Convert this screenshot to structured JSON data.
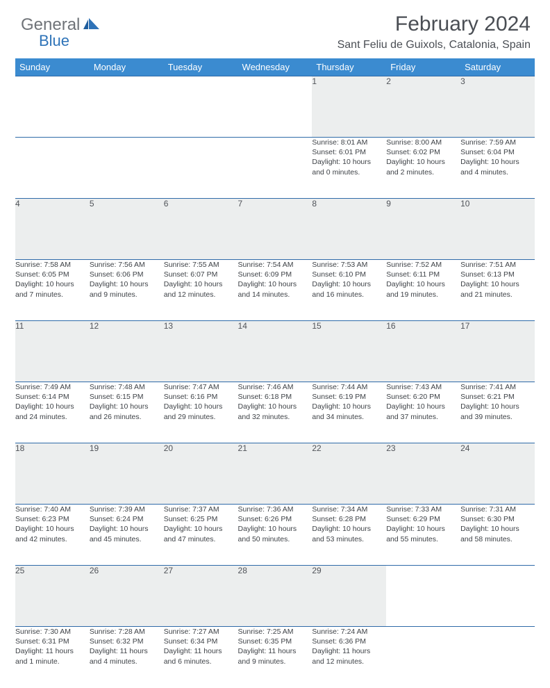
{
  "logo": {
    "word1": "General",
    "word2": "Blue"
  },
  "header": {
    "title": "February 2024",
    "location": "Sant Feliu de Guixols, Catalonia, Spain"
  },
  "colors": {
    "header_bg": "#3b8bd0",
    "header_text": "#ffffff",
    "daynum_bg": "#eceeee",
    "border": "#2e6aa8",
    "body_text": "#3e4247",
    "title_text": "#4a4e54",
    "logo_gray": "#6f7378",
    "logo_blue": "#2e73b8"
  },
  "weekdays": [
    "Sunday",
    "Monday",
    "Tuesday",
    "Wednesday",
    "Thursday",
    "Friday",
    "Saturday"
  ],
  "weeks": [
    [
      null,
      null,
      null,
      null,
      {
        "n": "1",
        "sunrise": "8:01 AM",
        "sunset": "6:01 PM",
        "day_h": "10",
        "day_m": "0"
      },
      {
        "n": "2",
        "sunrise": "8:00 AM",
        "sunset": "6:02 PM",
        "day_h": "10",
        "day_m": "2"
      },
      {
        "n": "3",
        "sunrise": "7:59 AM",
        "sunset": "6:04 PM",
        "day_h": "10",
        "day_m": "4"
      }
    ],
    [
      {
        "n": "4",
        "sunrise": "7:58 AM",
        "sunset": "6:05 PM",
        "day_h": "10",
        "day_m": "7"
      },
      {
        "n": "5",
        "sunrise": "7:56 AM",
        "sunset": "6:06 PM",
        "day_h": "10",
        "day_m": "9"
      },
      {
        "n": "6",
        "sunrise": "7:55 AM",
        "sunset": "6:07 PM",
        "day_h": "10",
        "day_m": "12"
      },
      {
        "n": "7",
        "sunrise": "7:54 AM",
        "sunset": "6:09 PM",
        "day_h": "10",
        "day_m": "14"
      },
      {
        "n": "8",
        "sunrise": "7:53 AM",
        "sunset": "6:10 PM",
        "day_h": "10",
        "day_m": "16"
      },
      {
        "n": "9",
        "sunrise": "7:52 AM",
        "sunset": "6:11 PM",
        "day_h": "10",
        "day_m": "19"
      },
      {
        "n": "10",
        "sunrise": "7:51 AM",
        "sunset": "6:13 PM",
        "day_h": "10",
        "day_m": "21"
      }
    ],
    [
      {
        "n": "11",
        "sunrise": "7:49 AM",
        "sunset": "6:14 PM",
        "day_h": "10",
        "day_m": "24"
      },
      {
        "n": "12",
        "sunrise": "7:48 AM",
        "sunset": "6:15 PM",
        "day_h": "10",
        "day_m": "26"
      },
      {
        "n": "13",
        "sunrise": "7:47 AM",
        "sunset": "6:16 PM",
        "day_h": "10",
        "day_m": "29"
      },
      {
        "n": "14",
        "sunrise": "7:46 AM",
        "sunset": "6:18 PM",
        "day_h": "10",
        "day_m": "32"
      },
      {
        "n": "15",
        "sunrise": "7:44 AM",
        "sunset": "6:19 PM",
        "day_h": "10",
        "day_m": "34"
      },
      {
        "n": "16",
        "sunrise": "7:43 AM",
        "sunset": "6:20 PM",
        "day_h": "10",
        "day_m": "37"
      },
      {
        "n": "17",
        "sunrise": "7:41 AM",
        "sunset": "6:21 PM",
        "day_h": "10",
        "day_m": "39"
      }
    ],
    [
      {
        "n": "18",
        "sunrise": "7:40 AM",
        "sunset": "6:23 PM",
        "day_h": "10",
        "day_m": "42"
      },
      {
        "n": "19",
        "sunrise": "7:39 AM",
        "sunset": "6:24 PM",
        "day_h": "10",
        "day_m": "45"
      },
      {
        "n": "20",
        "sunrise": "7:37 AM",
        "sunset": "6:25 PM",
        "day_h": "10",
        "day_m": "47"
      },
      {
        "n": "21",
        "sunrise": "7:36 AM",
        "sunset": "6:26 PM",
        "day_h": "10",
        "day_m": "50"
      },
      {
        "n": "22",
        "sunrise": "7:34 AM",
        "sunset": "6:28 PM",
        "day_h": "10",
        "day_m": "53"
      },
      {
        "n": "23",
        "sunrise": "7:33 AM",
        "sunset": "6:29 PM",
        "day_h": "10",
        "day_m": "55"
      },
      {
        "n": "24",
        "sunrise": "7:31 AM",
        "sunset": "6:30 PM",
        "day_h": "10",
        "day_m": "58"
      }
    ],
    [
      {
        "n": "25",
        "sunrise": "7:30 AM",
        "sunset": "6:31 PM",
        "day_h": "11",
        "day_m": "1"
      },
      {
        "n": "26",
        "sunrise": "7:28 AM",
        "sunset": "6:32 PM",
        "day_h": "11",
        "day_m": "4"
      },
      {
        "n": "27",
        "sunrise": "7:27 AM",
        "sunset": "6:34 PM",
        "day_h": "11",
        "day_m": "6"
      },
      {
        "n": "28",
        "sunrise": "7:25 AM",
        "sunset": "6:35 PM",
        "day_h": "11",
        "day_m": "9"
      },
      {
        "n": "29",
        "sunrise": "7:24 AM",
        "sunset": "6:36 PM",
        "day_h": "11",
        "day_m": "12"
      },
      null,
      null
    ]
  ]
}
